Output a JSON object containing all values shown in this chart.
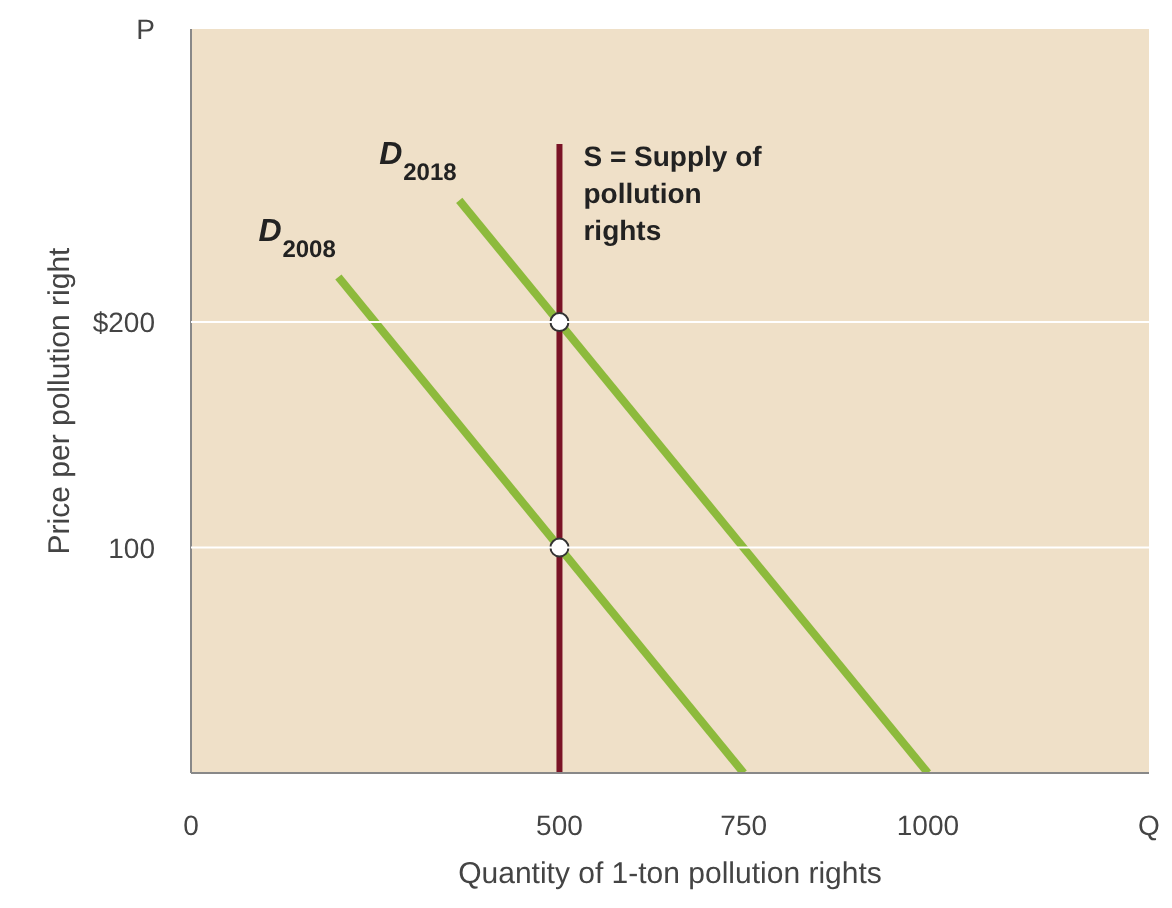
{
  "chart_data": {
    "type": "line",
    "xlabel": "Quantity of 1-ton pollution rights",
    "ylabel": "Price per pollution right",
    "xlim": [
      0,
      1300
    ],
    "ylim": [
      0,
      330
    ],
    "xticks": [
      0,
      500,
      750,
      1000,
      {
        "value": 1300,
        "label": "Q"
      }
    ],
    "yticks": [
      100,
      {
        "value": 200,
        "label": "$200"
      },
      {
        "value": 330,
        "label": "P"
      }
    ],
    "series": [
      {
        "name": "D$_{2008}$",
        "color": "#8dba3c",
        "x": [
          200,
          750
        ],
        "values": [
          220,
          0
        ]
      },
      {
        "name": "D$_{2018}$",
        "color": "#8dba3c",
        "x": [
          364,
          1000
        ],
        "values": [
          254,
          0
        ]
      },
      {
        "name": "S = Supply of\npollution\nrights",
        "color": "#7a1326",
        "x": [
          500,
          500
        ],
        "values": [
          0,
          279
        ]
      },
      {
        "type": "scatter",
        "color": "#ffffff",
        "x": [
          500,
          500
        ],
        "values": [
          100,
          200
        ]
      }
    ],
    "ref_lines": [
      {
        "axis": "y",
        "value": 100,
        "color": "#ffffff"
      },
      {
        "axis": "y",
        "value": 200,
        "color": "#ffffff"
      }
    ]
  }
}
